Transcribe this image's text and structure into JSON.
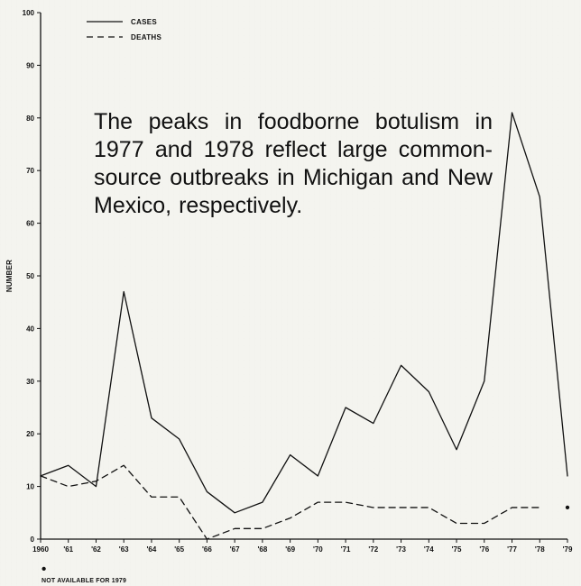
{
  "chart_data": {
    "type": "line",
    "x": [
      "1960",
      "'61",
      "'62",
      "'63",
      "'64",
      "'65",
      "'66",
      "'67",
      "'68",
      "'69",
      "'70",
      "'71",
      "'72",
      "'73",
      "'74",
      "'75",
      "'76",
      "'77",
      "'78",
      "'79"
    ],
    "series": [
      {
        "name": "CASES",
        "values": [
          12,
          14,
          10,
          47,
          23,
          19,
          9,
          5,
          7,
          16,
          12,
          25,
          22,
          33,
          28,
          17,
          30,
          81,
          65,
          12
        ],
        "style": "solid",
        "color": "#111111"
      },
      {
        "name": "DEATHS",
        "values": [
          12,
          10,
          11,
          14,
          8,
          8,
          0,
          2,
          2,
          4,
          7,
          7,
          6,
          6,
          6,
          3,
          3,
          6,
          6,
          null
        ],
        "style": "dashed",
        "color": "#111111"
      }
    ],
    "ylim": [
      0,
      100
    ],
    "yticks": [
      0,
      10,
      20,
      30,
      40,
      50,
      60,
      70,
      80,
      90,
      100
    ],
    "ylabel": "NUMBER",
    "legend_position": "top-left",
    "annotations": [
      {
        "text": "The peaks in foodborne botulism in 1977 and 1978 reflect large common-source outbreaks in Michigan and New Mexico, respectively."
      }
    ],
    "special_marks": [
      {
        "x": "'79",
        "y": 6,
        "series": "DEATHS",
        "symbol": "•"
      }
    ],
    "footnote": {
      "symbol": "•",
      "text": "NOT AVAILABLE FOR 1979"
    }
  }
}
